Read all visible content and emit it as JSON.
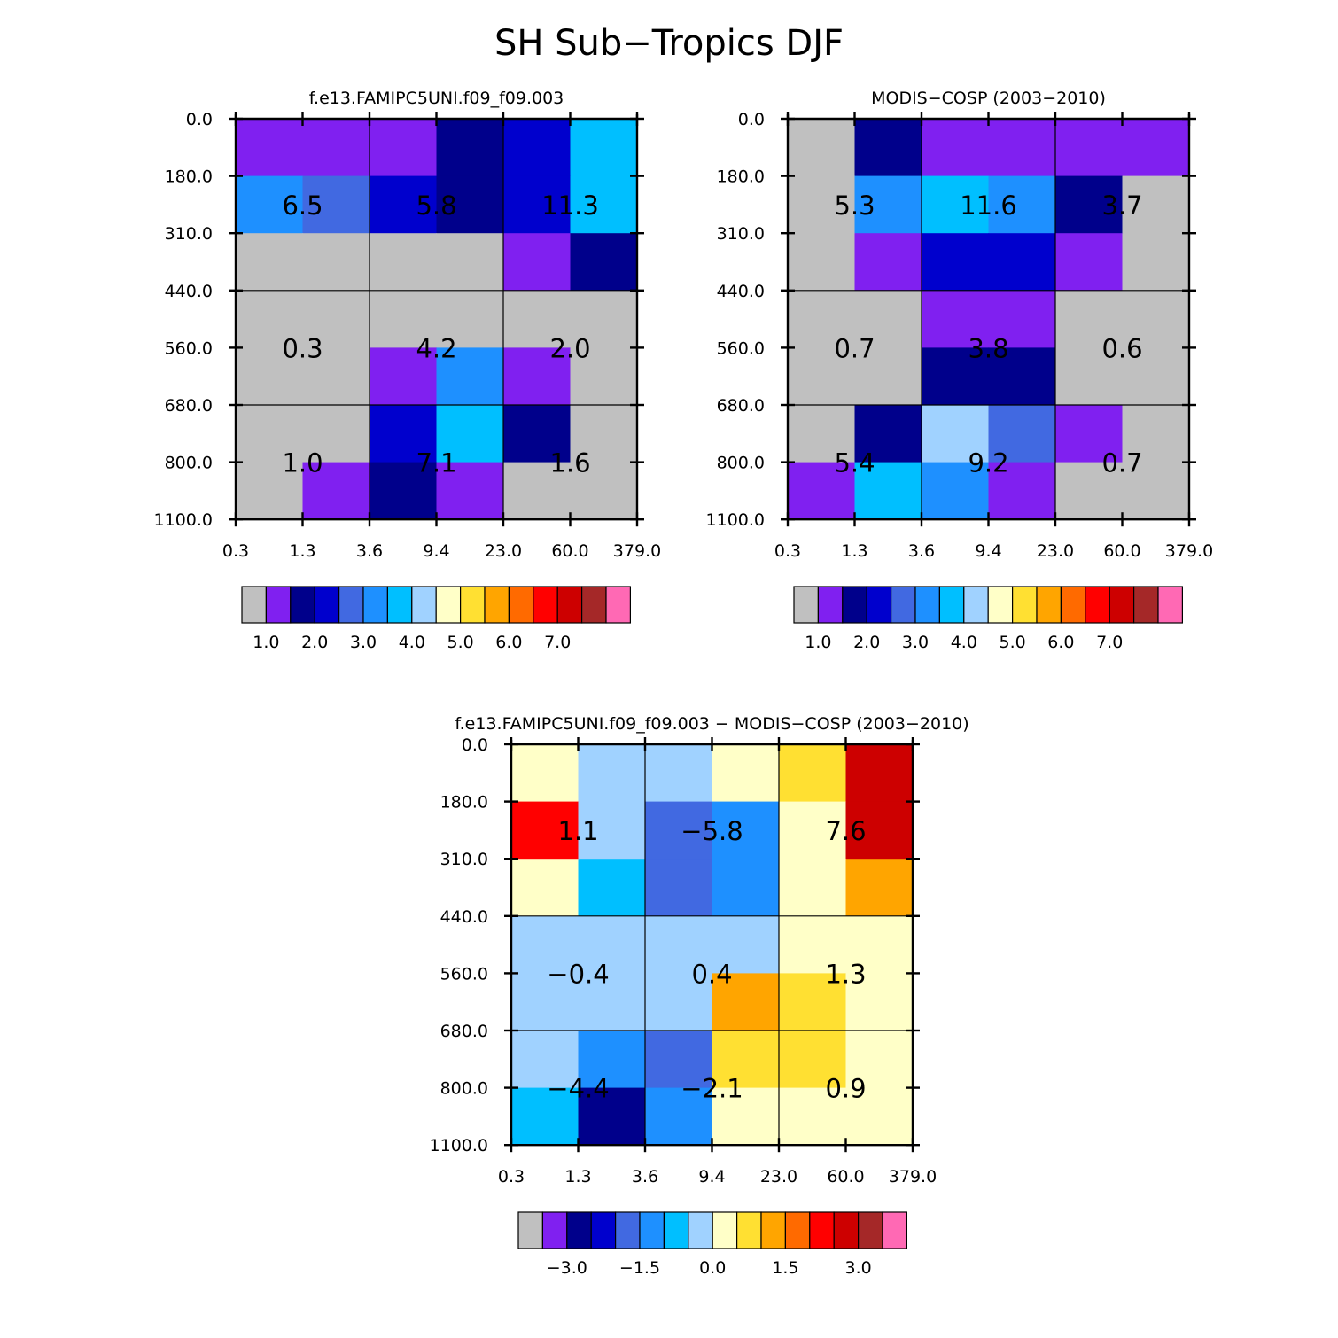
{
  "title": "SH Sub−Tropics DJF",
  "x_ticks": [
    "0.3",
    "1.3",
    "3.6",
    "9.4",
    "23.0",
    "60.0",
    "379.0"
  ],
  "y_ticks": [
    "0.0",
    "180.0",
    "310.0",
    "440.0",
    "560.0",
    "680.0",
    "800.0",
    "1100.0"
  ],
  "palette": [
    "#c0c0c0",
    "#8020f0",
    "#00008b",
    "#0000cd",
    "#4169e1",
    "#1e90ff",
    "#00bfff",
    "#a0d2ff",
    "#ffffc8",
    "#ffe032",
    "#ffa500",
    "#ff6a00",
    "#ff0000",
    "#cd0000",
    "#a52828",
    "#ff69b4"
  ],
  "chart_data": [
    {
      "type": "heatmap",
      "title": "f.e13.FAMIPC5UNI.f09_f09.003",
      "x_edges": [
        0.3,
        1.3,
        3.6,
        9.4,
        23.0,
        60.0,
        379.0
      ],
      "y_edges": [
        0,
        180,
        310,
        440,
        560,
        680,
        800,
        1100
      ],
      "cell_colors": [
        [
          1,
          1,
          1,
          2,
          3,
          6
        ],
        [
          5,
          4,
          3,
          2,
          3,
          6
        ],
        [
          0,
          0,
          0,
          0,
          1,
          2
        ],
        [
          0,
          0,
          0,
          0,
          0,
          0
        ],
        [
          0,
          0,
          1,
          5,
          1,
          0
        ],
        [
          0,
          0,
          3,
          6,
          2,
          0
        ],
        [
          0,
          1,
          2,
          1,
          0,
          0
        ]
      ],
      "group_totals": [
        {
          "label": "6.5",
          "col": 0,
          "row": 0
        },
        {
          "label": "5.8",
          "col": 1,
          "row": 0
        },
        {
          "label": "11.3",
          "col": 2,
          "row": 0
        },
        {
          "label": "0.3",
          "col": 0,
          "row": 1
        },
        {
          "label": "4.2",
          "col": 1,
          "row": 1
        },
        {
          "label": "2.0",
          "col": 2,
          "row": 1
        },
        {
          "label": "1.0",
          "col": 0,
          "row": 2
        },
        {
          "label": "7.1",
          "col": 1,
          "row": 2
        },
        {
          "label": "1.6",
          "col": 2,
          "row": 2
        }
      ],
      "colorbar_labels": [
        "1.0",
        "2.0",
        "3.0",
        "4.0",
        "5.0",
        "6.0",
        "7.0"
      ]
    },
    {
      "type": "heatmap",
      "title": "MODIS−COSP (2003−2010)",
      "x_edges": [
        0.3,
        1.3,
        3.6,
        9.4,
        23.0,
        60.0,
        379.0
      ],
      "y_edges": [
        0,
        180,
        310,
        440,
        560,
        680,
        800,
        1100
      ],
      "cell_colors": [
        [
          0,
          2,
          1,
          1,
          1,
          1
        ],
        [
          0,
          5,
          6,
          5,
          2,
          0
        ],
        [
          0,
          1,
          3,
          3,
          1,
          0
        ],
        [
          0,
          0,
          1,
          1,
          0,
          0
        ],
        [
          0,
          0,
          2,
          2,
          0,
          0
        ],
        [
          0,
          2,
          7,
          4,
          1,
          0
        ],
        [
          1,
          6,
          5,
          1,
          0,
          0
        ]
      ],
      "group_totals": [
        {
          "label": "5.3",
          "col": 0,
          "row": 0
        },
        {
          "label": "11.6",
          "col": 1,
          "row": 0
        },
        {
          "label": "3.7",
          "col": 2,
          "row": 0
        },
        {
          "label": "0.7",
          "col": 0,
          "row": 1
        },
        {
          "label": "3.8",
          "col": 1,
          "row": 1
        },
        {
          "label": "0.6",
          "col": 2,
          "row": 1
        },
        {
          "label": "5.4",
          "col": 0,
          "row": 2
        },
        {
          "label": "9.2",
          "col": 1,
          "row": 2
        },
        {
          "label": "0.7",
          "col": 2,
          "row": 2
        }
      ],
      "colorbar_labels": [
        "1.0",
        "2.0",
        "3.0",
        "4.0",
        "5.0",
        "6.0",
        "7.0"
      ]
    },
    {
      "type": "heatmap",
      "title": "f.e13.FAMIPC5UNI.f09_f09.003 − MODIS−COSP (2003−2010)",
      "x_edges": [
        0.3,
        1.3,
        3.6,
        9.4,
        23.0,
        60.0,
        379.0
      ],
      "y_edges": [
        0,
        180,
        310,
        440,
        560,
        680,
        800,
        1100
      ],
      "cell_colors": [
        [
          8,
          7,
          7,
          8,
          9,
          13
        ],
        [
          12,
          7,
          4,
          5,
          8,
          13
        ],
        [
          8,
          6,
          4,
          5,
          8,
          10
        ],
        [
          7,
          7,
          7,
          7,
          8,
          8
        ],
        [
          7,
          7,
          7,
          10,
          9,
          8
        ],
        [
          7,
          5,
          4,
          9,
          9,
          8
        ],
        [
          6,
          2,
          5,
          8,
          8,
          8
        ]
      ],
      "group_totals": [
        {
          "label": "1.1",
          "col": 0,
          "row": 0
        },
        {
          "label": "−5.8",
          "col": 1,
          "row": 0
        },
        {
          "label": "7.6",
          "col": 2,
          "row": 0
        },
        {
          "label": "−0.4",
          "col": 0,
          "row": 1
        },
        {
          "label": "0.4",
          "col": 1,
          "row": 1
        },
        {
          "label": "1.3",
          "col": 2,
          "row": 1
        },
        {
          "label": "−4.4",
          "col": 0,
          "row": 2
        },
        {
          "label": "−2.1",
          "col": 1,
          "row": 2
        },
        {
          "label": "0.9",
          "col": 2,
          "row": 2
        }
      ],
      "colorbar_labels": [
        "−3.0",
        "−1.5",
        "0.0",
        "1.5",
        "3.0"
      ]
    }
  ]
}
